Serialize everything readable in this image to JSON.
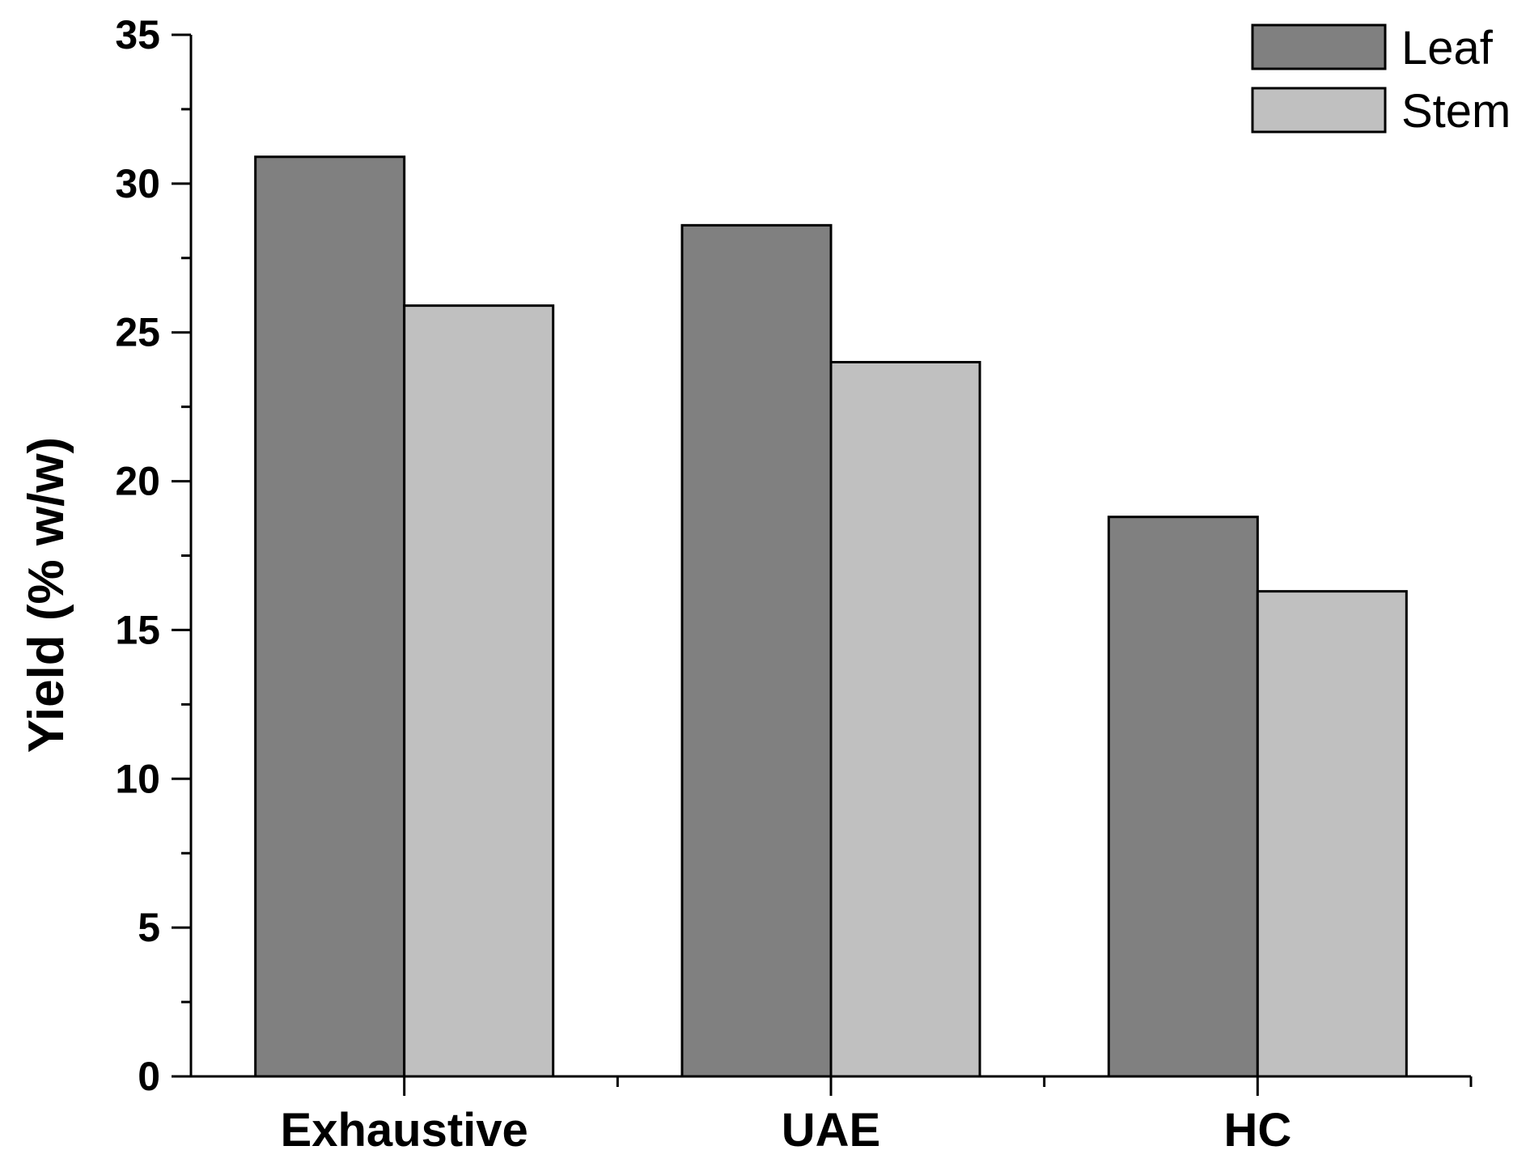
{
  "chart_data": {
    "type": "bar",
    "title": "",
    "xlabel": "",
    "ylabel": "Yield (% w/w)",
    "categories": [
      "Exhaustive",
      "UAE",
      "HC"
    ],
    "series": [
      {
        "name": "Leaf",
        "values": [
          30.9,
          28.6,
          18.8
        ],
        "color": "#808080"
      },
      {
        "name": "Stem",
        "values": [
          25.9,
          24.0,
          16.3
        ],
        "color": "#c0c0c0"
      }
    ],
    "ylim": [
      0,
      35
    ],
    "yticks": [
      "0",
      "5",
      "10",
      "15",
      "20",
      "25",
      "30",
      "35"
    ],
    "grid": false,
    "legend_position": "top-right"
  }
}
